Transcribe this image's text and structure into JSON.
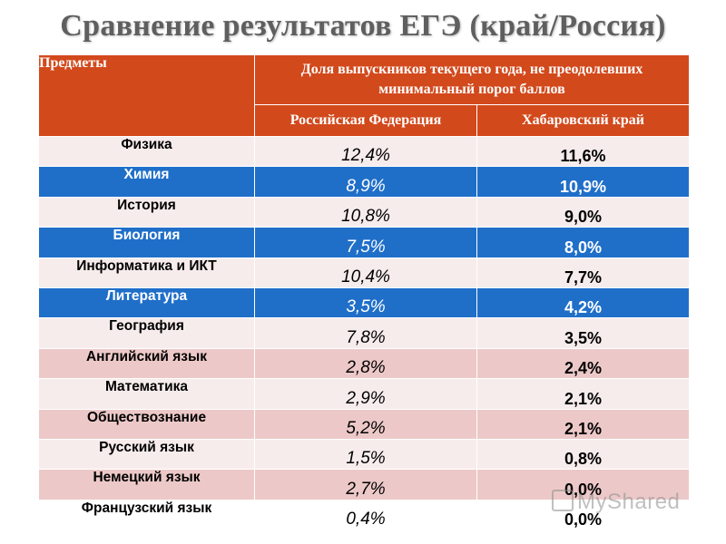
{
  "title": "Сравнение результатов ЕГЭ (край/Россия)",
  "table": {
    "header_subjects": "Предметы",
    "header_share": "Доля выпускников текущего года, не преодолевших минимальный порог баллов",
    "col_rf": "Российская Федерация",
    "col_kr": "Хабаровский край",
    "rows": [
      {
        "subject": "Физика",
        "rf": "12,4%",
        "kr": "11,6%"
      },
      {
        "subject": "Химия",
        "rf": "8,9%",
        "kr": "10,9%"
      },
      {
        "subject": "История",
        "rf": "10,8%",
        "kr": "9,0%"
      },
      {
        "subject": "Биология",
        "rf": "7,5%",
        "kr": "8,0%"
      },
      {
        "subject": "Информатика и ИКТ",
        "rf": "10,4%",
        "kr": "7,7%"
      },
      {
        "subject": "Литература",
        "rf": "3,5%",
        "kr": "4,2%"
      },
      {
        "subject": "География",
        "rf": "7,8%",
        "kr": "3,5%"
      },
      {
        "subject": "Английский язык",
        "rf": "2,8%",
        "kr": "2,4%"
      },
      {
        "subject": "Математика",
        "rf": "2,9%",
        "kr": "2,1%"
      },
      {
        "subject": "Обществознание",
        "rf": "5,2%",
        "kr": "2,1%"
      },
      {
        "subject": "Русский язык",
        "rf": "1,5%",
        "kr": "0,8%"
      },
      {
        "subject": "Немецкий язык",
        "rf": "2,7%",
        "kr": "0,0%"
      },
      {
        "subject": "Французский язык",
        "rf": "0,4%",
        "kr": "0,0%"
      }
    ]
  },
  "watermark": "MyShared",
  "colors": {
    "header": "#d2491c",
    "highlight": "#1f6fc9",
    "light_row": "#f7ecec",
    "pink_row": "#ecc9c8",
    "title": "#5f5f5f"
  }
}
